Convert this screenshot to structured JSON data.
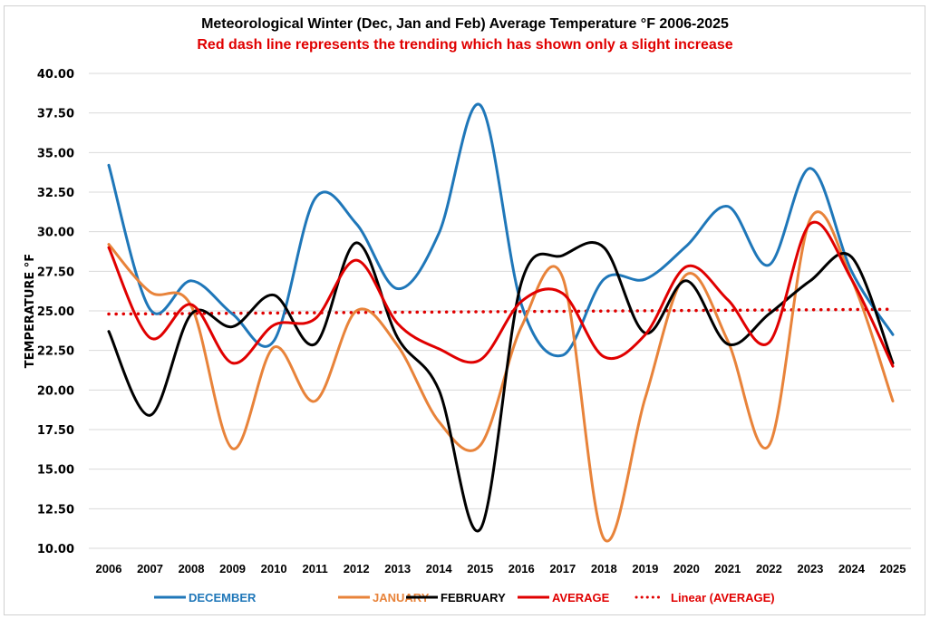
{
  "chart_data": {
    "type": "line",
    "title": "Meteorological Winter (Dec, Jan and Feb) Average Temperature °F 2006-2025",
    "subtitle": "Red dash line represents the trending which has shown only a slight increase",
    "xlabel": "",
    "ylabel": "TEMPERATURE °F",
    "ylim": [
      10,
      40
    ],
    "ytick_step": 2.5,
    "ytick_labels": [
      "10.00",
      "12.50",
      "15.00",
      "17.50",
      "20.00",
      "22.50",
      "25.00",
      "27.50",
      "30.00",
      "32.50",
      "35.00",
      "37.50",
      "40.00"
    ],
    "grid": true,
    "smooth": true,
    "legend_position": "bottom",
    "categories": [
      "2006",
      "2007",
      "2008",
      "2009",
      "2010",
      "2011",
      "2012",
      "2013",
      "2014",
      "2015",
      "2016",
      "2017",
      "2018",
      "2019",
      "2020",
      "2021",
      "2022",
      "2023",
      "2024",
      "2025"
    ],
    "series": [
      {
        "name": "DECEMBER",
        "color": "#1f77b9",
        "values": [
          34.2,
          25.1,
          26.9,
          24.8,
          23.1,
          32.1,
          30.5,
          26.4,
          29.9,
          38.0,
          25.4,
          22.2,
          27.0,
          27.0,
          29.1,
          31.6,
          27.9,
          34.0,
          27.5,
          23.5
        ]
      },
      {
        "name": "JANUARY",
        "color": "#e8833a",
        "values": [
          29.2,
          26.2,
          25.3,
          16.3,
          22.7,
          19.3,
          25.0,
          22.8,
          18.0,
          16.5,
          24.0,
          27.1,
          10.6,
          19.5,
          27.3,
          23.1,
          16.5,
          30.8,
          27.0,
          19.3
        ]
      },
      {
        "name": "FEBRUARY",
        "color": "#000000",
        "values": [
          23.7,
          18.4,
          24.8,
          24.0,
          26.0,
          22.9,
          29.3,
          23.3,
          20.0,
          11.2,
          26.8,
          28.5,
          29.0,
          23.6,
          26.9,
          22.9,
          24.8,
          26.9,
          28.4,
          21.7
        ]
      },
      {
        "name": "AVERAGE",
        "color": "#e00000",
        "values": [
          29.0,
          23.3,
          25.4,
          21.7,
          24.1,
          24.5,
          28.2,
          24.2,
          22.6,
          21.9,
          25.6,
          26.1,
          22.1,
          23.5,
          27.8,
          25.7,
          23.0,
          30.5,
          27.0,
          21.5
        ]
      }
    ],
    "trendline": {
      "name": "Linear (AVERAGE)",
      "color": "#e00000",
      "start": 24.8,
      "end": 25.1,
      "style": "dotted"
    }
  }
}
